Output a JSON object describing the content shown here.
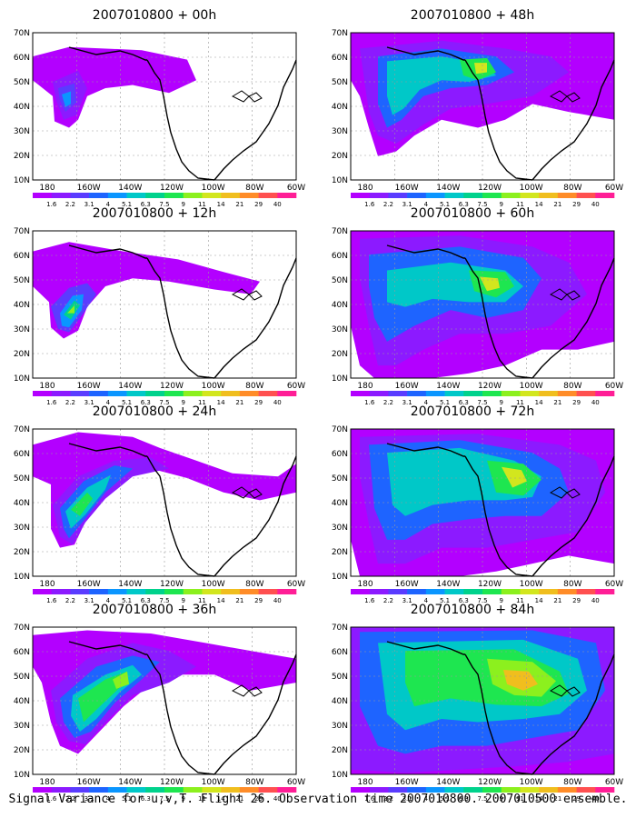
{
  "caption": "Signal Variance for u,v,T. Flight 26. Observation time 2007010800. 2007010500 ensemble.",
  "lat_labels": [
    "10N",
    "20N",
    "30N",
    "40N",
    "50N",
    "60N",
    "70N"
  ],
  "lon_labels": [
    "180",
    "160W",
    "140W",
    "120W",
    "100W",
    "80W",
    "60W"
  ],
  "colorbar": {
    "labels": [
      "1.6",
      "2.2",
      "3.1",
      "4",
      "5.1",
      "6.3",
      "7.5",
      "9",
      "11",
      "14",
      "21",
      "29",
      "40"
    ],
    "colors": [
      "#b300ff",
      "#8c1aff",
      "#5a3cff",
      "#1e64ff",
      "#0a96ff",
      "#00c8c8",
      "#00d28c",
      "#1ee650",
      "#8cf01e",
      "#d2e61e",
      "#f0be1e",
      "#ff8c28",
      "#ff5050",
      "#ff1e96"
    ]
  },
  "panels": [
    {
      "title": "2007010800 + 00h"
    },
    {
      "title": "2007010800 + 12h"
    },
    {
      "title": "2007010800 + 24h"
    },
    {
      "title": "2007010800 + 36h"
    },
    {
      "title": "2007010800 + 48h"
    },
    {
      "title": "2007010800 + 60h"
    },
    {
      "title": "2007010800 + 72h"
    },
    {
      "title": "2007010800 + 84h"
    }
  ]
}
